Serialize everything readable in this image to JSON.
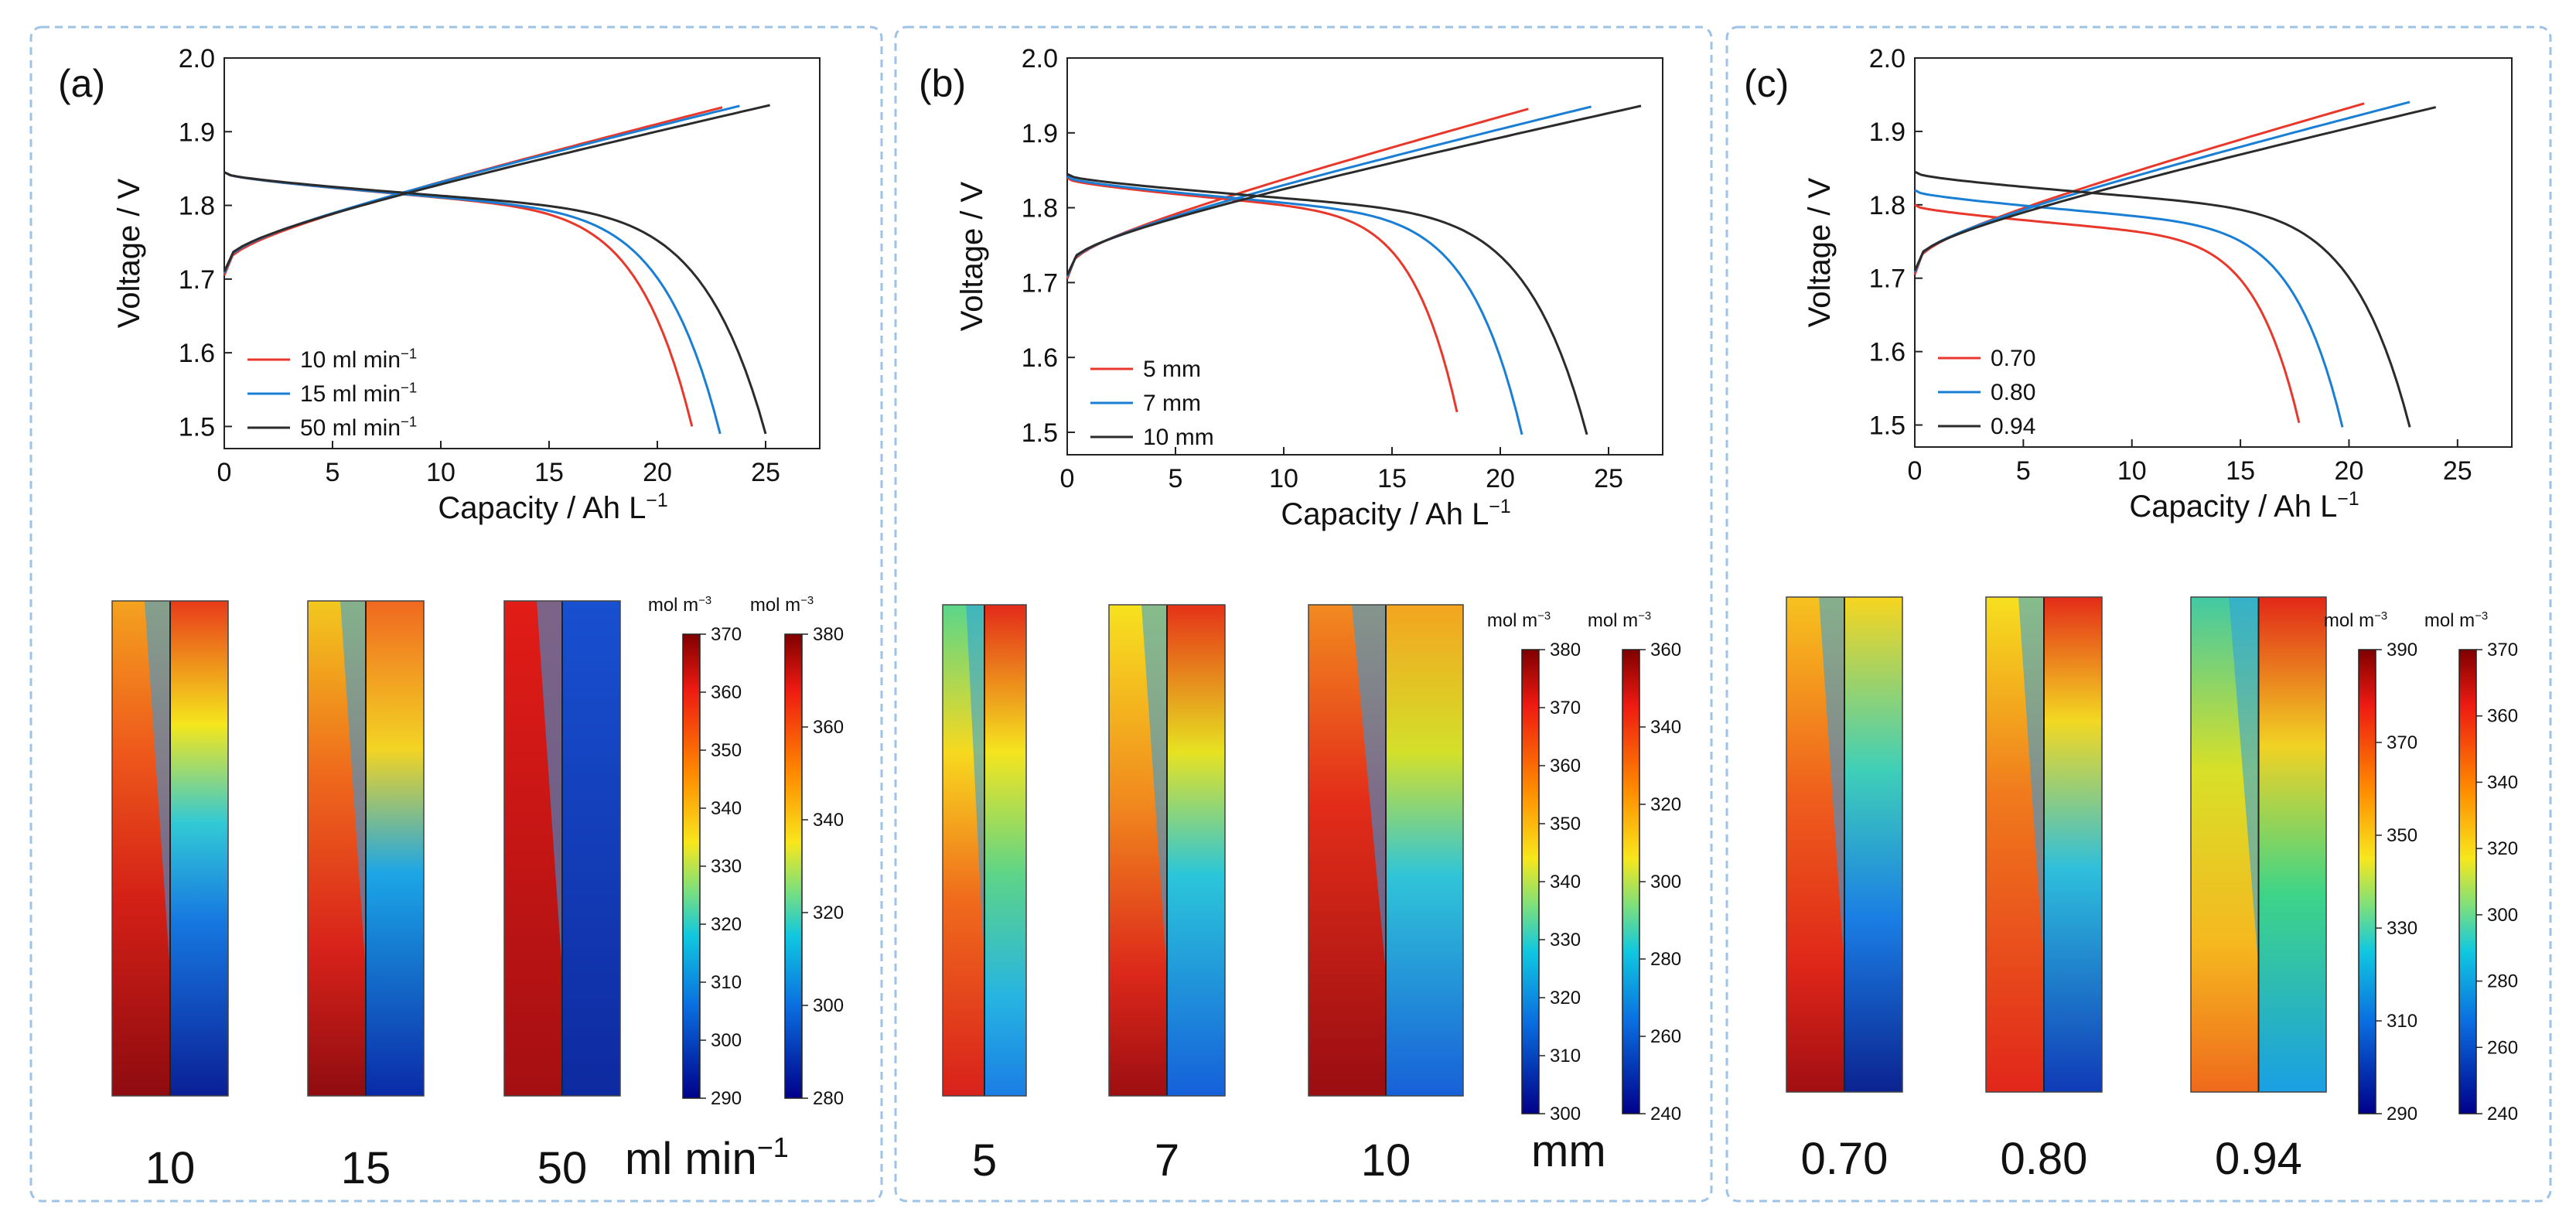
{
  "chart_data": [
    {
      "panel_label": "(a)",
      "type": "line",
      "xlabel": "Capacity / Ah L",
      "xlabel_sup": "−1",
      "ylabel": "Voltage / V",
      "xlim": [
        0,
        27.5
      ],
      "ylim": [
        1.47,
        2.0
      ],
      "xticks": [
        "0",
        "5",
        "10",
        "15",
        "20",
        "25"
      ],
      "yticks": [
        "1.5",
        "1.6",
        "1.7",
        "1.8",
        "1.9",
        "2.0"
      ],
      "series": [
        {
          "name": "10 ml min",
          "unit_sup": "−1",
          "color": "#e8382b",
          "charge": {
            "start": [
              0,
              1.705
            ],
            "end": [
              23.0,
              1.933
            ]
          },
          "discharge": {
            "start": [
              0,
              1.845
            ],
            "end": [
              21.6,
              1.5
            ]
          }
        },
        {
          "name": "15 ml min",
          "unit_sup": "−1",
          "color": "#1a7fd4",
          "charge": {
            "start": [
              0,
              1.708
            ],
            "end": [
              23.8,
              1.935
            ]
          },
          "discharge": {
            "start": [
              0,
              1.845
            ],
            "end": [
              22.9,
              1.49
            ]
          }
        },
        {
          "name": "50 ml min",
          "unit_sup": "−1",
          "color": "#2b2b2b",
          "charge": {
            "start": [
              0,
              1.71
            ],
            "end": [
              25.2,
              1.936
            ]
          },
          "discharge": {
            "start": [
              0,
              1.845
            ],
            "end": [
              25.0,
              1.49
            ]
          }
        }
      ],
      "colorbars": [
        {
          "unit": "mol m",
          "unit_sup": "−3",
          "ticks": [
            "370",
            "360",
            "350",
            "340",
            "330",
            "320",
            "310",
            "300",
            "290"
          ]
        },
        {
          "unit": "mol m",
          "unit_sup": "−3",
          "ticks": [
            "380",
            "360",
            "340",
            "320",
            "300",
            "280"
          ]
        }
      ],
      "maps": [
        {
          "label": "10",
          "split": 0.5,
          "left": "grad-a1-L",
          "right": "grad-a1-R"
        },
        {
          "label": "15",
          "split": 0.5,
          "left": "grad-a2-L",
          "right": "grad-a2-R"
        },
        {
          "label": "50",
          "split": 0.5,
          "left": "grad-a3-L",
          "right": "grad-a3-R"
        }
      ],
      "unit_label": "ml min",
      "unit_label_sup": "−1"
    },
    {
      "panel_label": "(b)",
      "type": "line",
      "xlabel": "Capacity / Ah L",
      "xlabel_sup": "−1",
      "ylabel": "Voltage / V",
      "xlim": [
        0,
        27.5
      ],
      "ylim": [
        1.47,
        2.0
      ],
      "xticks": [
        "0",
        "5",
        "10",
        "15",
        "20",
        "25"
      ],
      "yticks": [
        "1.5",
        "1.6",
        "1.7",
        "1.8",
        "1.9",
        "2.0"
      ],
      "series": [
        {
          "name": "5 mm",
          "color": "#e8382b",
          "charge": {
            "start": [
              0,
              1.705
            ],
            "end": [
              21.3,
              1.932
            ]
          },
          "discharge": {
            "start": [
              0,
              1.84
            ],
            "end": [
              18.0,
              1.527
            ]
          }
        },
        {
          "name": "7 mm",
          "color": "#1a7fd4",
          "charge": {
            "start": [
              0,
              1.708
            ],
            "end": [
              24.2,
              1.935
            ]
          },
          "discharge": {
            "start": [
              0,
              1.842
            ],
            "end": [
              21.0,
              1.497
            ]
          }
        },
        {
          "name": "10 mm",
          "color": "#2b2b2b",
          "charge": {
            "start": [
              0,
              1.71
            ],
            "end": [
              26.5,
              1.936
            ]
          },
          "discharge": {
            "start": [
              0,
              1.845
            ],
            "end": [
              24.0,
              1.497
            ]
          }
        }
      ],
      "colorbars": [
        {
          "unit": "mol m",
          "unit_sup": "−3",
          "ticks": [
            "380",
            "370",
            "360",
            "350",
            "340",
            "330",
            "320",
            "310",
            "300"
          ]
        },
        {
          "unit": "mol m",
          "unit_sup": "−3",
          "ticks": [
            "360",
            "340",
            "320",
            "300",
            "280",
            "260",
            "240"
          ]
        }
      ],
      "maps": [
        {
          "label": "5",
          "split": 0.5,
          "left": "grad-b1-L",
          "right": "grad-b1-R"
        },
        {
          "label": "7",
          "split": 0.5,
          "left": "grad-b2-L",
          "right": "grad-b2-R"
        },
        {
          "label": "10",
          "split": 0.5,
          "left": "grad-b3-L",
          "right": "grad-b3-R"
        }
      ],
      "unit_label": "mm",
      "unit_label_sup": ""
    },
    {
      "panel_label": "(c)",
      "type": "line",
      "xlabel": "Capacity / Ah L",
      "xlabel_sup": "−1",
      "ylabel": "Voltage / V",
      "xlim": [
        0,
        27.5
      ],
      "ylim": [
        1.47,
        2.0
      ],
      "xticks": [
        "0",
        "5",
        "10",
        "15",
        "20",
        "25"
      ],
      "yticks": [
        "1.5",
        "1.6",
        "1.7",
        "1.8",
        "1.9",
        "2.0"
      ],
      "series": [
        {
          "name": "0.70",
          "color": "#e8382b",
          "charge": {
            "start": [
              0,
              1.705
            ],
            "end": [
              20.7,
              1.938
            ]
          },
          "discharge": {
            "start": [
              0,
              1.8
            ],
            "end": [
              17.7,
              1.503
            ]
          }
        },
        {
          "name": "0.80",
          "color": "#1a7fd4",
          "charge": {
            "start": [
              0,
              1.708
            ],
            "end": [
              22.8,
              1.94
            ]
          },
          "discharge": {
            "start": [
              0,
              1.82
            ],
            "end": [
              19.7,
              1.497
            ]
          }
        },
        {
          "name": "0.94",
          "color": "#2b2b2b",
          "charge": {
            "start": [
              0,
              1.71
            ],
            "end": [
              24.0,
              1.933
            ]
          },
          "discharge": {
            "start": [
              0,
              1.845
            ],
            "end": [
              22.8,
              1.497
            ]
          }
        }
      ],
      "colorbars": [
        {
          "unit": "mol m",
          "unit_sup": "−3",
          "ticks": [
            "390",
            "370",
            "350",
            "330",
            "310",
            "290"
          ]
        },
        {
          "unit": "mol m",
          "unit_sup": "−3",
          "ticks": [
            "370",
            "360",
            "340",
            "320",
            "300",
            "280",
            "260",
            "240"
          ]
        }
      ],
      "maps": [
        {
          "label": "0.70",
          "split": 0.5,
          "left": "grad-c1-L",
          "right": "grad-c1-R"
        },
        {
          "label": "0.80",
          "split": 0.5,
          "left": "grad-c2-L",
          "right": "grad-c2-R"
        },
        {
          "label": "0.94",
          "split": 0.5,
          "left": "grad-c3-L",
          "right": "grad-c3-R"
        }
      ],
      "unit_label": "",
      "unit_label_sup": ""
    }
  ]
}
